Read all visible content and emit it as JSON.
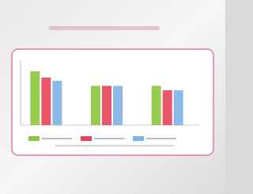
{
  "chart_data": {
    "type": "bar",
    "categories": [
      null,
      null,
      null
    ],
    "series": [
      {
        "color": "#8cc63e",
        "values": [
          85,
          62,
          62
        ]
      },
      {
        "color": "#e8425a",
        "values": [
          75,
          62,
          55
        ]
      },
      {
        "color": "#7fb2e5",
        "values": [
          70,
          62,
          55
        ]
      }
    ],
    "ylim": [
      0,
      100
    ]
  }
}
